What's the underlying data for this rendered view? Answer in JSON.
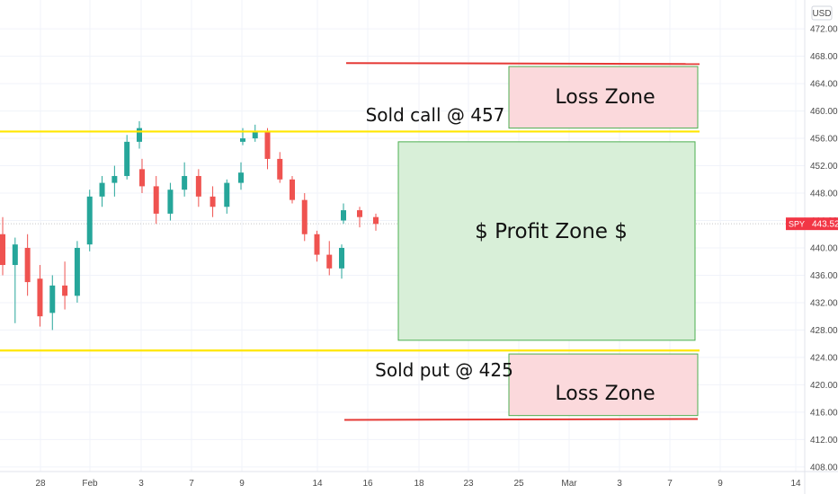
{
  "chart_data": {
    "type": "candlestick",
    "symbol": "SPY",
    "currency": "USD",
    "last_price": 443.52,
    "ylim": [
      407,
      474
    ],
    "y_ticks": [
      "472.00",
      "468.00",
      "464.00",
      "460.00",
      "456.00",
      "452.00",
      "448.00",
      "444.00",
      "440.00",
      "436.00",
      "432.00",
      "428.00",
      "424.00",
      "420.00",
      "416.00",
      "412.00",
      "408.00"
    ],
    "x_ticks": [
      "28",
      "Feb",
      "3",
      "7",
      "9",
      "14",
      "16",
      "18",
      "23",
      "25",
      "Mar",
      "3",
      "7",
      "9",
      "14"
    ],
    "candles": [
      {
        "o": 442.0,
        "h": 444.5,
        "l": 436.0,
        "c": 437.5
      },
      {
        "o": 437.5,
        "h": 441.5,
        "l": 429.0,
        "c": 440.5
      },
      {
        "o": 440.0,
        "h": 442.0,
        "l": 433.0,
        "c": 435.0
      },
      {
        "o": 435.5,
        "h": 437.5,
        "l": 428.5,
        "c": 430.0
      },
      {
        "o": 430.5,
        "h": 436.0,
        "l": 428.0,
        "c": 434.5
      },
      {
        "o": 434.5,
        "h": 438.0,
        "l": 431.0,
        "c": 433.0
      },
      {
        "o": 433.0,
        "h": 441.0,
        "l": 432.0,
        "c": 440.0
      },
      {
        "o": 440.5,
        "h": 448.5,
        "l": 439.5,
        "c": 447.5
      },
      {
        "o": 447.5,
        "h": 450.5,
        "l": 446.0,
        "c": 449.5
      },
      {
        "o": 449.5,
        "h": 452.0,
        "l": 447.5,
        "c": 450.5
      },
      {
        "o": 450.5,
        "h": 456.5,
        "l": 450.0,
        "c": 455.5
      },
      {
        "o": 455.5,
        "h": 458.5,
        "l": 454.5,
        "c": 457.5
      },
      {
        "o": 451.5,
        "h": 453.0,
        "l": 448.0,
        "c": 449.0
      },
      {
        "o": 449.0,
        "h": 450.5,
        "l": 443.5,
        "c": 445.0
      },
      {
        "o": 445.0,
        "h": 449.5,
        "l": 444.0,
        "c": 448.5
      },
      {
        "o": 448.5,
        "h": 452.5,
        "l": 447.5,
        "c": 450.5
      },
      {
        "o": 450.5,
        "h": 451.5,
        "l": 446.0,
        "c": 447.5
      },
      {
        "o": 447.5,
        "h": 449.0,
        "l": 444.5,
        "c": 446.0
      },
      {
        "o": 446.0,
        "h": 450.0,
        "l": 445.0,
        "c": 449.5
      },
      {
        "o": 449.5,
        "h": 452.5,
        "l": 448.5,
        "c": 451.0
      },
      {
        "o": 455.5,
        "h": 457.5,
        "l": 455.0,
        "c": 456.0
      },
      {
        "o": 456.0,
        "h": 458.0,
        "l": 455.5,
        "c": 457.0
      },
      {
        "o": 457.0,
        "h": 457.5,
        "l": 451.5,
        "c": 453.0
      },
      {
        "o": 453.0,
        "h": 454.0,
        "l": 449.5,
        "c": 450.0
      },
      {
        "o": 450.0,
        "h": 450.5,
        "l": 446.5,
        "c": 447.0
      },
      {
        "o": 447.0,
        "h": 448.0,
        "l": 441.0,
        "c": 442.0
      },
      {
        "o": 442.0,
        "h": 442.5,
        "l": 438.0,
        "c": 439.0
      },
      {
        "o": 439.0,
        "h": 441.0,
        "l": 436.0,
        "c": 437.0
      },
      {
        "o": 437.0,
        "h": 440.5,
        "l": 435.5,
        "c": 440.0
      },
      {
        "o": 444.0,
        "h": 446.5,
        "l": 443.5,
        "c": 445.5
      },
      {
        "o": 445.5,
        "h": 446.0,
        "l": 443.0,
        "c": 444.5
      },
      {
        "o": 444.5,
        "h": 445.0,
        "l": 442.5,
        "c": 443.5
      }
    ],
    "annotations": {
      "call_line": {
        "price": 457,
        "label": "Sold call @ 457",
        "color": "#ffe600"
      },
      "put_line": {
        "price": 425,
        "label": "Sold put @ 425",
        "color": "#ffe600"
      },
      "upper_red_line": {
        "price": 467,
        "color": "#e53935"
      },
      "lower_red_line": {
        "price": 415,
        "color": "#e53935"
      },
      "upper_loss_zone": {
        "label": "Loss Zone",
        "from": 457.5,
        "to": 466.5
      },
      "lower_loss_zone": {
        "label": "Loss Zone",
        "from": 415.5,
        "to": 424.5
      },
      "profit_zone": {
        "label": "$ Profit Zone $",
        "from": 426.5,
        "to": 455.5
      }
    },
    "colors": {
      "up": "#26a69a",
      "down": "#ef5350",
      "loss_fill": "#fbd9dc",
      "loss_border": "#4caf50",
      "profit_fill": "#d8efd8",
      "profit_border": "#4caf50",
      "price_badge": "#f23645",
      "grid": "#f0f3fa"
    }
  }
}
